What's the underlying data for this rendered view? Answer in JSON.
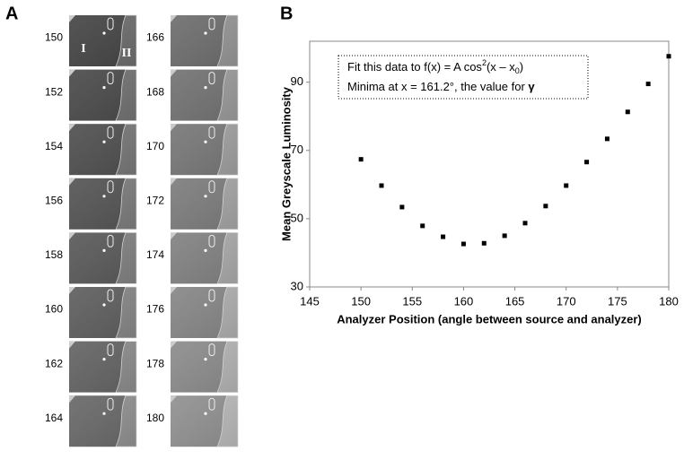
{
  "panel_a": {
    "label": "A",
    "frames": [
      150,
      152,
      154,
      156,
      158,
      160,
      162,
      164,
      166,
      168,
      170,
      172,
      174,
      176,
      178,
      180
    ],
    "region_labels": [
      "I",
      "II"
    ]
  },
  "chart_data": {
    "type": "scatter",
    "panel_label": "B",
    "x_label": "Analyzer Position (angle between source and analyzer)",
    "y_label": "Mean Greyscale Luminosity",
    "annotation": {
      "line1": [
        "Fit this data to f(x) = A cos",
        "2",
        "(x – x",
        "0",
        ")"
      ],
      "line2": [
        "Minima at x = 161.2°, the value for ",
        "γ"
      ]
    },
    "x": [
      150,
      152,
      154,
      156,
      158,
      160,
      162,
      164,
      166,
      168,
      170,
      172,
      174,
      176,
      178,
      180
    ],
    "series": [
      {
        "color": "#000000",
        "values": [
          67.4,
          59.7,
          53.4,
          47.9,
          44.7,
          42.6,
          42.8,
          45.0,
          48.7,
          53.7,
          59.7,
          66.6,
          73.4,
          81.3,
          89.5,
          97.6
        ]
      }
    ],
    "xlim": [
      145,
      180
    ],
    "xticks": [
      145,
      150,
      155,
      160,
      165,
      170,
      175,
      180
    ],
    "ylim": [
      30,
      102
    ],
    "yticks": [
      30,
      50,
      70,
      90
    ]
  }
}
